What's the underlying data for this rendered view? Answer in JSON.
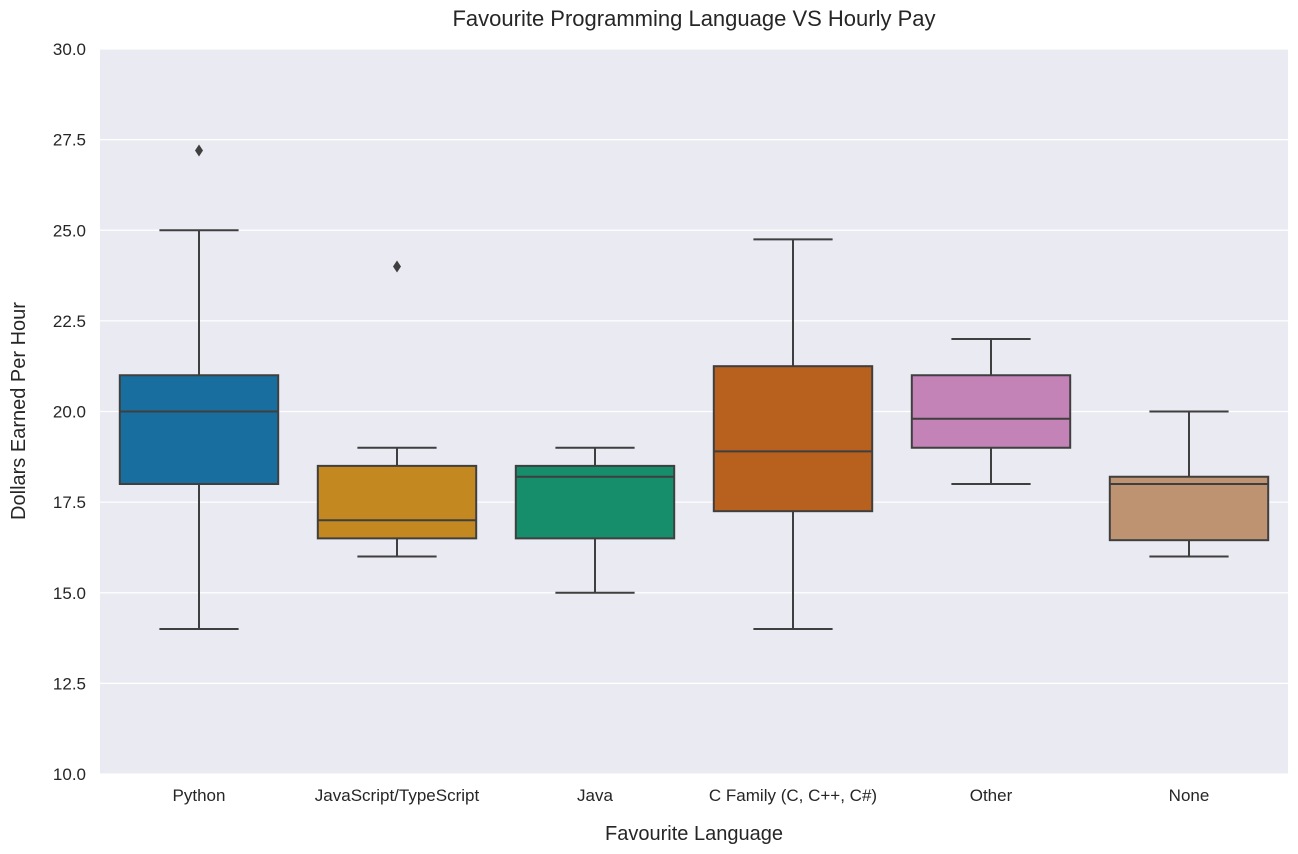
{
  "chart_data": {
    "type": "box",
    "title": "Favourite Programming Language VS Hourly Pay",
    "xlabel": "Favourite Language",
    "ylabel": "Dollars Earned Per Hour",
    "ylim": [
      10.0,
      30.0
    ],
    "yticks": [
      "10.0",
      "12.5",
      "15.0",
      "17.5",
      "20.0",
      "22.5",
      "25.0",
      "27.5",
      "30.0"
    ],
    "grid": true,
    "categories": [
      "Python",
      "JavaScript/TypeScript",
      "Java",
      "C Family (C, C++, C#)",
      "Other",
      "None"
    ],
    "boxes": [
      {
        "category": "Python",
        "whisker_low": 14.0,
        "q1": 18.0,
        "median": 20.0,
        "q3": 21.0,
        "whisker_high": 25.0,
        "outliers": [
          27.2
        ],
        "color": "#186f9f"
      },
      {
        "category": "JavaScript/TypeScript",
        "whisker_low": 16.0,
        "q1": 16.5,
        "median": 17.0,
        "q3": 18.5,
        "whisker_high": 19.0,
        "outliers": [
          24.0
        ],
        "color": "#c38820"
      },
      {
        "category": "Java",
        "whisker_low": 15.0,
        "q1": 16.5,
        "median": 18.2,
        "q3": 18.5,
        "whisker_high": 19.0,
        "outliers": [],
        "color": "#168d6b"
      },
      {
        "category": "C Family (C, C++, C#)",
        "whisker_low": 14.0,
        "q1": 17.25,
        "median": 18.9,
        "q3": 21.25,
        "whisker_high": 24.75,
        "outliers": [],
        "color": "#b8611e"
      },
      {
        "category": "Other",
        "whisker_low": 18.0,
        "q1": 19.0,
        "median": 19.8,
        "q3": 21.0,
        "whisker_high": 22.0,
        "outliers": [],
        "color": "#c383b6"
      },
      {
        "category": "None",
        "whisker_low": 16.0,
        "q1": 16.45,
        "median": 18.0,
        "q3": 18.2,
        "whisker_high": 20.0,
        "outliers": [],
        "color": "#bd9371"
      }
    ],
    "colors": {
      "plot_background": "#eaeaf2",
      "grid": "#ffffff",
      "line": "#3f3f3f"
    }
  }
}
